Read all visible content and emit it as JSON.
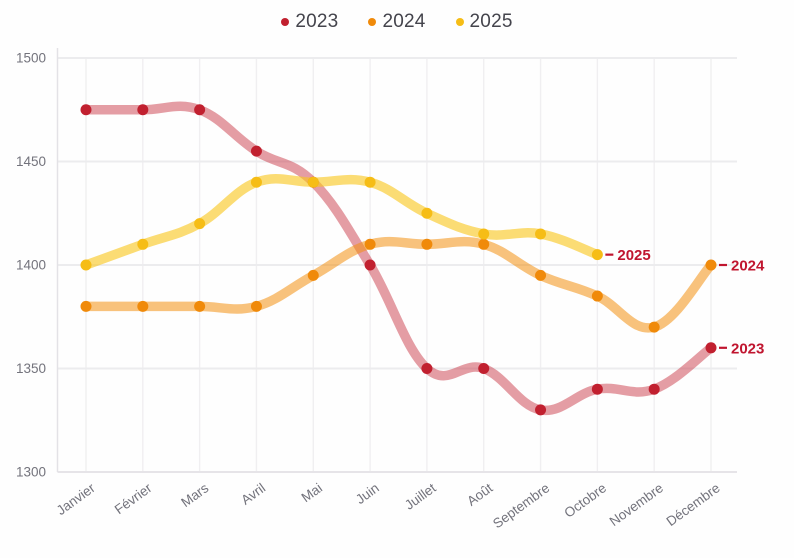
{
  "chart_data": {
    "type": "line",
    "categories": [
      "Janvier",
      "Février",
      "Mars",
      "Avril",
      "Mai",
      "Juin",
      "Juillet",
      "Août",
      "Septembre",
      "Octobre",
      "Novembre",
      "Décembre"
    ],
    "series": [
      {
        "name": "2023",
        "color": "#c1202f",
        "band_color": "rgba(197,40,55,0.45)",
        "values": [
          1475,
          1475,
          1475,
          1455,
          1440,
          1400,
          1350,
          1350,
          1330,
          1340,
          1340,
          1360
        ],
        "end_label": "2023"
      },
      {
        "name": "2024",
        "color": "#f08a0a",
        "band_color": "rgba(242,144,16,0.55)",
        "values": [
          1380,
          1380,
          1380,
          1380,
          1395,
          1410,
          1410,
          1410,
          1395,
          1385,
          1370,
          1400
        ],
        "end_label": "2024"
      },
      {
        "name": "2025",
        "color": "#f6bd16",
        "band_color": "rgba(248,199,30,0.62)",
        "values": [
          1400,
          1410,
          1420,
          1440,
          1440,
          1440,
          1425,
          1415,
          1415,
          1405
        ],
        "end_label": "2025"
      }
    ],
    "legend": [
      "2023",
      "2024",
      "2025"
    ],
    "legend_position": "top",
    "title": "",
    "xlabel": "",
    "ylabel": "",
    "ylim": [
      1300,
      1500
    ],
    "yticks": [
      1300,
      1350,
      1400,
      1450,
      1500
    ],
    "grid": true,
    "end_label_color": "#c0152f"
  }
}
